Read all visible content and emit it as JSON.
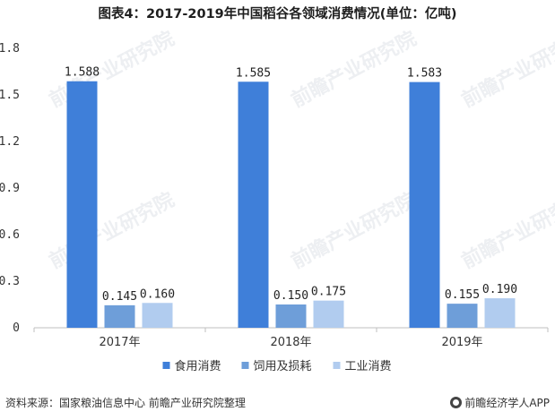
{
  "title": "图表4：2017-2019年中国稻谷各领域消费情况(单位：亿吨)",
  "source": "资料来源：国家粮油信息中心 前瞻产业研究院整理",
  "brand": "前瞻经济学人APP",
  "watermark": "前瞻产业研究院",
  "chart_data": {
    "type": "bar",
    "categories": [
      "2017年",
      "2018年",
      "2019年"
    ],
    "series": [
      {
        "name": "食用消费",
        "values": [
          1.588,
          1.585,
          1.583
        ],
        "labels": [
          "1.588",
          "1.585",
          "1.583"
        ],
        "color": "#3f7fd9"
      },
      {
        "name": "饲用及损耗",
        "values": [
          0.145,
          0.15,
          0.155
        ],
        "labels": [
          "0.145",
          "0.150",
          "0.155"
        ],
        "color": "#6e9ed9"
      },
      {
        "name": "工业消费",
        "values": [
          0.16,
          0.175,
          0.19
        ],
        "labels": [
          "0.160",
          "0.175",
          "0.190"
        ],
        "color": "#b1ccef"
      }
    ],
    "ylim": [
      0,
      1.8
    ],
    "yticks": [
      "0",
      "0.3",
      "0.6",
      "0.9",
      "1.2",
      "1.5",
      "1.8"
    ],
    "ytick_values": [
      0,
      0.3,
      0.6,
      0.9,
      1.2,
      1.5,
      1.8
    ],
    "legend_position": "bottom",
    "grid": false
  }
}
